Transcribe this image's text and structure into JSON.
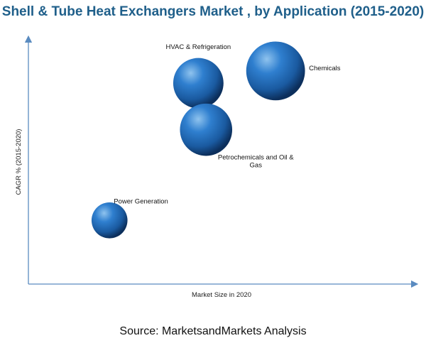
{
  "chart_data": {
    "type": "bubble",
    "title": "Shell & Tube Heat Exchangers Market , by Application (2015-2020)",
    "xlabel": "Market Size in 2020",
    "ylabel": "CAGR % (2015-2020)",
    "xlim": [
      0,
      100
    ],
    "ylim": [
      0,
      100
    ],
    "grid": false,
    "legend": "none",
    "bubble_color": "#1b5fa6",
    "points": [
      {
        "label": "Power Generation",
        "x": 21,
        "y": 26,
        "size": 0.55
      },
      {
        "label": "HVAC & Refrigeration",
        "x": 44,
        "y": 82,
        "size": 0.77
      },
      {
        "label": "Petrochemicals and Oil & Gas",
        "x": 46,
        "y": 63,
        "size": 0.8
      },
      {
        "label": "Chemicals",
        "x": 64,
        "y": 87,
        "size": 0.9
      }
    ]
  },
  "source": "Source: MarketsandMarkets Analysis"
}
